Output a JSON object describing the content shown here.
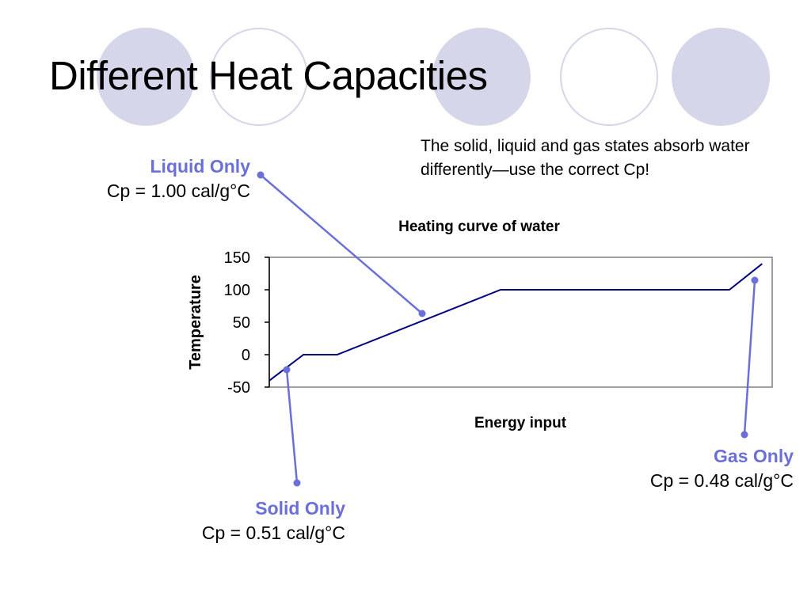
{
  "slide": {
    "title": "Different Heat Capacities",
    "subtitle": "The solid, liquid and gas states absorb water differently—use the correct Cp!"
  },
  "labels": {
    "liquid": {
      "name": "Liquid Only",
      "cp": "Cp = 1.00 cal/g°C"
    },
    "solid": {
      "name": "Solid Only",
      "cp": "Cp = 0.51 cal/g°C"
    },
    "gas": {
      "name": "Gas Only",
      "cp": "Cp = 0.48 cal/g°C"
    }
  },
  "colors": {
    "accent": "#6b6fd8",
    "curve": "#000080",
    "decor": "#d5d6ea"
  },
  "chart_data": {
    "type": "line",
    "title": "Heating curve of water",
    "xlabel": "Energy input",
    "ylabel": "Temperature",
    "ylim": [
      -50,
      150
    ],
    "yticks": [
      -50,
      0,
      50,
      100,
      150
    ],
    "x_tick_labels_shown": false,
    "grid": false,
    "legend": "none",
    "series": [
      {
        "x": [
          0,
          6.8,
          13.5,
          46,
          91.5,
          98
        ],
        "values": [
          -40,
          0,
          0,
          100,
          100,
          140
        ]
      }
    ],
    "xlim": [
      0,
      100
    ]
  }
}
